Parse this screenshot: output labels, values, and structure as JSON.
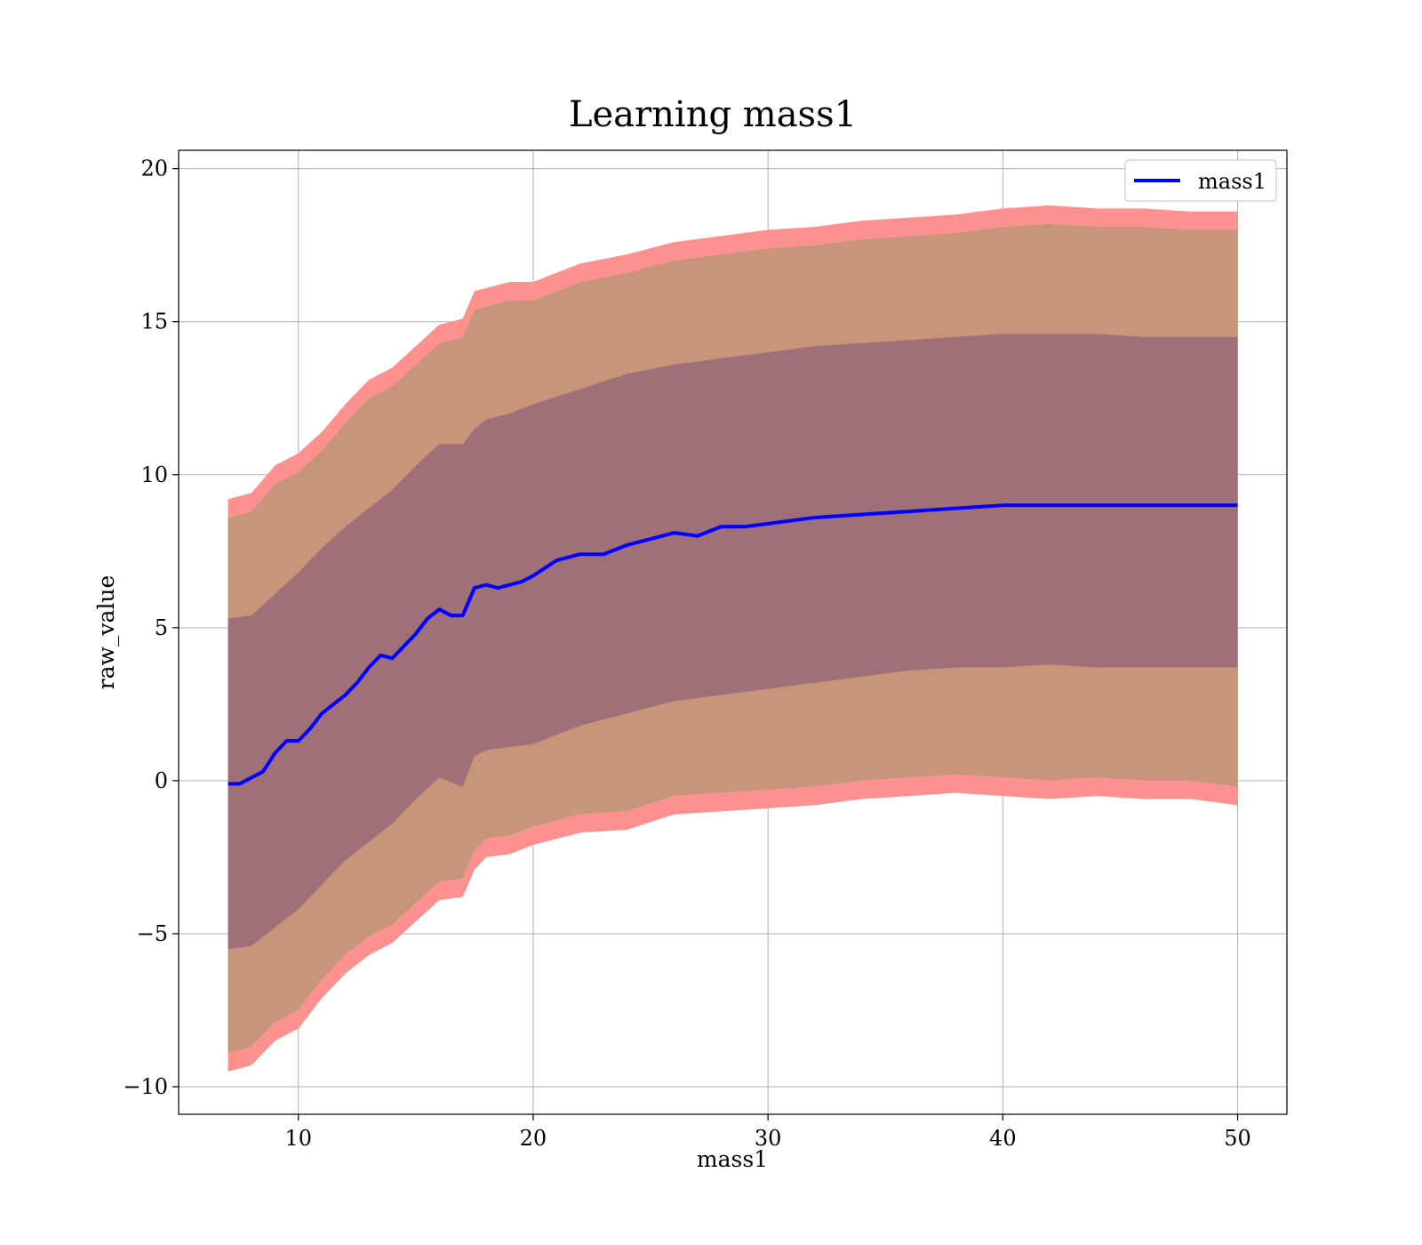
{
  "chart_data": {
    "type": "line",
    "title": "Learning mass1",
    "xlabel": "mass1",
    "ylabel": "raw_value",
    "xlim": [
      4.9,
      52.1
    ],
    "ylim": [
      -10.9,
      20.6
    ],
    "xticks": [
      10,
      20,
      30,
      40,
      50
    ],
    "yticks": [
      -10,
      -5,
      0,
      5,
      10,
      15,
      20
    ],
    "xtick_labels": [
      "10",
      "20",
      "30",
      "40",
      "50"
    ],
    "ytick_labels": [
      "−10",
      "−5",
      "0",
      "5",
      "10",
      "15",
      "20"
    ],
    "grid": true,
    "legend": {
      "position": "upper right",
      "entries": [
        "mass1"
      ]
    },
    "colors": {
      "mean_line": "#0000ff",
      "band_fill": "#ff0000",
      "inner_band_fill": "#800080",
      "band_overlap_tone": "#c8957a",
      "inner_band_tone": "#a07078"
    },
    "series": [
      {
        "name": "mass1",
        "x": [
          7,
          7.5,
          8,
          8.5,
          9,
          9.5,
          10,
          10.5,
          11,
          11.5,
          12,
          12.5,
          13,
          13.5,
          14,
          14.5,
          15,
          15.5,
          16,
          16.5,
          17,
          17.5,
          18,
          18.5,
          19,
          19.5,
          20,
          21,
          22,
          23,
          24,
          25,
          26,
          27,
          28,
          29,
          30,
          32,
          34,
          36,
          38,
          40,
          42,
          44,
          46,
          48,
          50
        ],
        "y": [
          -0.1,
          -0.1,
          0.1,
          0.3,
          0.9,
          1.3,
          1.3,
          1.7,
          2.2,
          2.5,
          2.8,
          3.2,
          3.7,
          4.1,
          4.0,
          4.4,
          4.8,
          5.3,
          5.6,
          5.4,
          5.4,
          6.3,
          6.4,
          6.3,
          6.4,
          6.5,
          6.7,
          7.2,
          7.4,
          7.4,
          7.7,
          7.9,
          8.1,
          8.0,
          8.3,
          8.3,
          8.4,
          8.6,
          8.7,
          8.8,
          8.9,
          9.0,
          9.0,
          9.0,
          9.0,
          9.0,
          9.0
        ]
      },
      {
        "name": "",
        "role": "band_outer",
        "x": [
          7,
          8,
          9,
          10,
          11,
          12,
          13,
          14,
          15,
          16,
          17,
          17.5,
          18,
          19,
          20,
          22,
          24,
          26,
          28,
          30,
          32,
          34,
          36,
          38,
          40,
          42,
          44,
          46,
          48,
          50
        ],
        "upper": [
          9.2,
          9.4,
          10.3,
          10.7,
          11.4,
          12.3,
          13.1,
          13.5,
          14.2,
          14.9,
          15.1,
          16.0,
          16.1,
          16.3,
          16.3,
          16.9,
          17.2,
          17.6,
          17.8,
          18.0,
          18.1,
          18.3,
          18.4,
          18.5,
          18.7,
          18.8,
          18.7,
          18.7,
          18.6,
          18.6
        ],
        "lower": [
          -9.5,
          -9.3,
          -8.5,
          -8.1,
          -7.1,
          -6.3,
          -5.7,
          -5.3,
          -4.6,
          -3.9,
          -3.8,
          -2.9,
          -2.5,
          -2.4,
          -2.1,
          -1.7,
          -1.6,
          -1.1,
          -1.0,
          -0.9,
          -0.8,
          -0.6,
          -0.5,
          -0.4,
          -0.5,
          -0.6,
          -0.5,
          -0.6,
          -0.6,
          -0.8
        ]
      },
      {
        "name": "",
        "role": "band_inner",
        "x": [
          7,
          8,
          9,
          10,
          11,
          12,
          13,
          14,
          15,
          16,
          17,
          17.5,
          18,
          19,
          20,
          22,
          24,
          26,
          28,
          30,
          32,
          34,
          36,
          38,
          40,
          42,
          44,
          46,
          48,
          50
        ],
        "upper": [
          5.3,
          5.4,
          6.1,
          6.8,
          7.6,
          8.3,
          8.9,
          9.5,
          10.3,
          11.0,
          11.0,
          11.5,
          11.8,
          12.0,
          12.3,
          12.8,
          13.3,
          13.6,
          13.8,
          14.0,
          14.2,
          14.3,
          14.4,
          14.5,
          14.6,
          14.6,
          14.6,
          14.5,
          14.5,
          14.5
        ],
        "lower": [
          -5.5,
          -5.4,
          -4.8,
          -4.2,
          -3.4,
          -2.6,
          -2.0,
          -1.4,
          -0.6,
          0.1,
          -0.2,
          0.8,
          1.0,
          1.1,
          1.2,
          1.8,
          2.2,
          2.6,
          2.8,
          3.0,
          3.2,
          3.4,
          3.6,
          3.7,
          3.7,
          3.8,
          3.7,
          3.7,
          3.7,
          3.7
        ]
      }
    ]
  }
}
